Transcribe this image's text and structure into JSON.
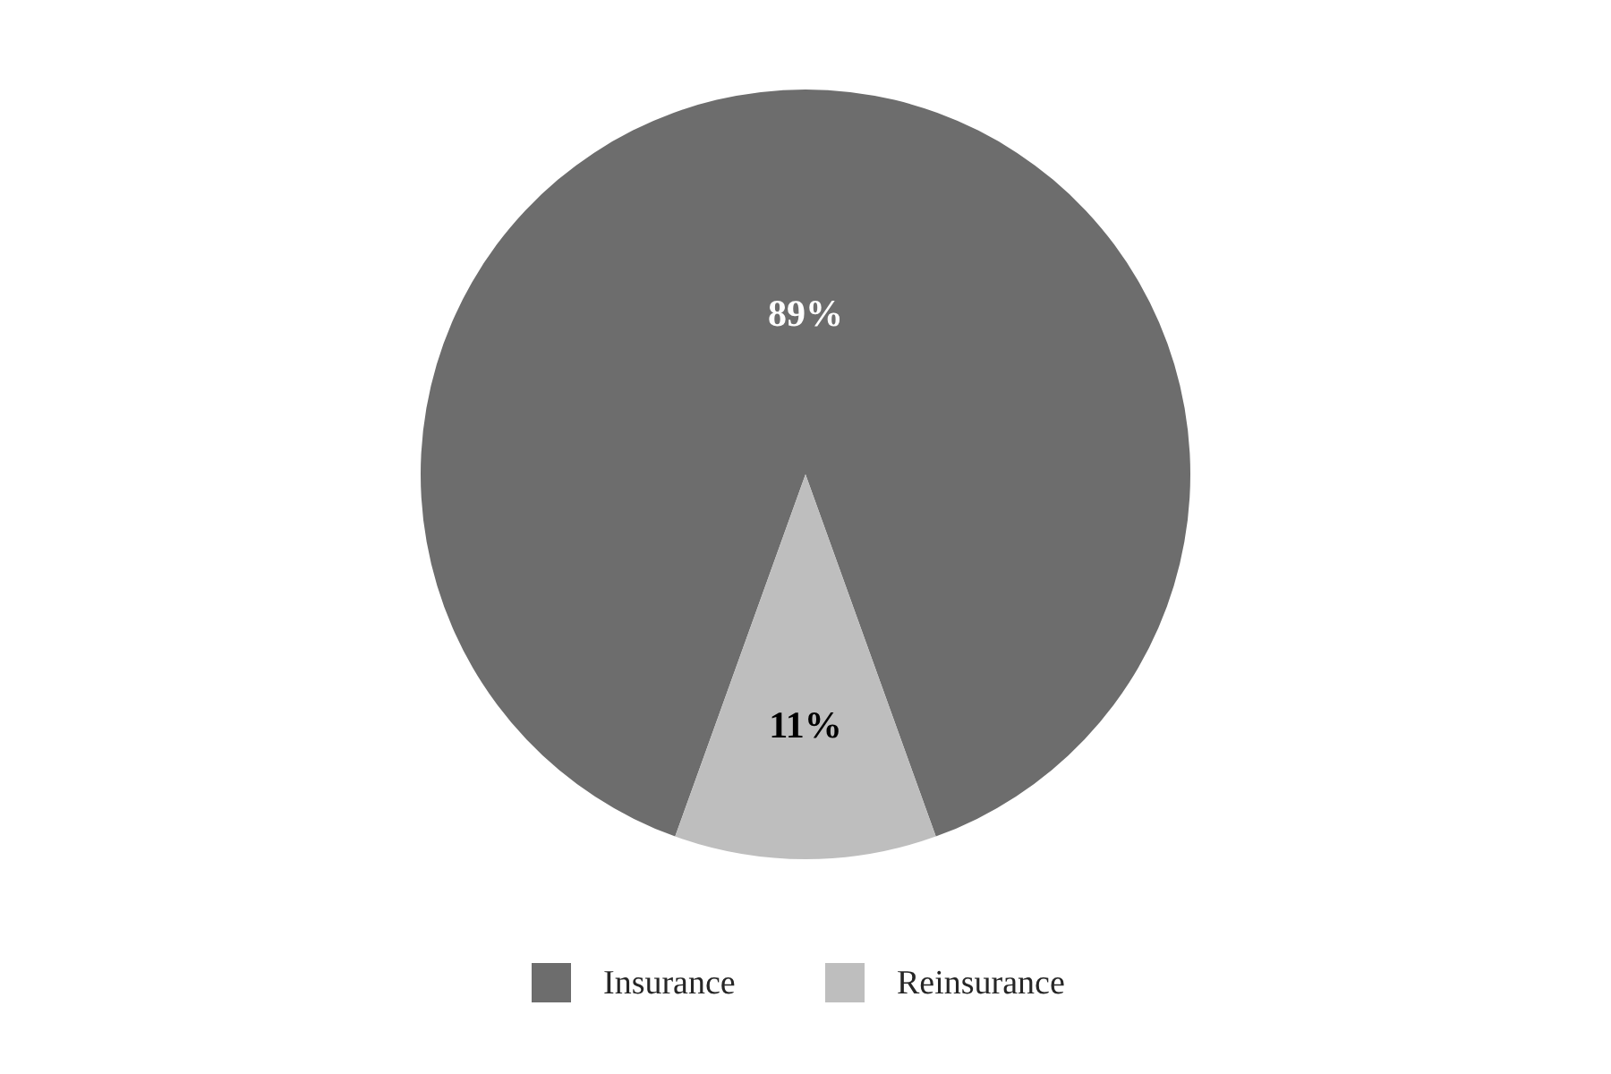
{
  "chart_data": {
    "type": "pie",
    "categories": [
      "Insurance",
      "Reinsurance"
    ],
    "values": [
      89,
      11
    ],
    "colors": [
      "#6d6d6d",
      "#bebebe"
    ],
    "value_labels": [
      "89%",
      "11%"
    ],
    "legend": "bottom"
  }
}
